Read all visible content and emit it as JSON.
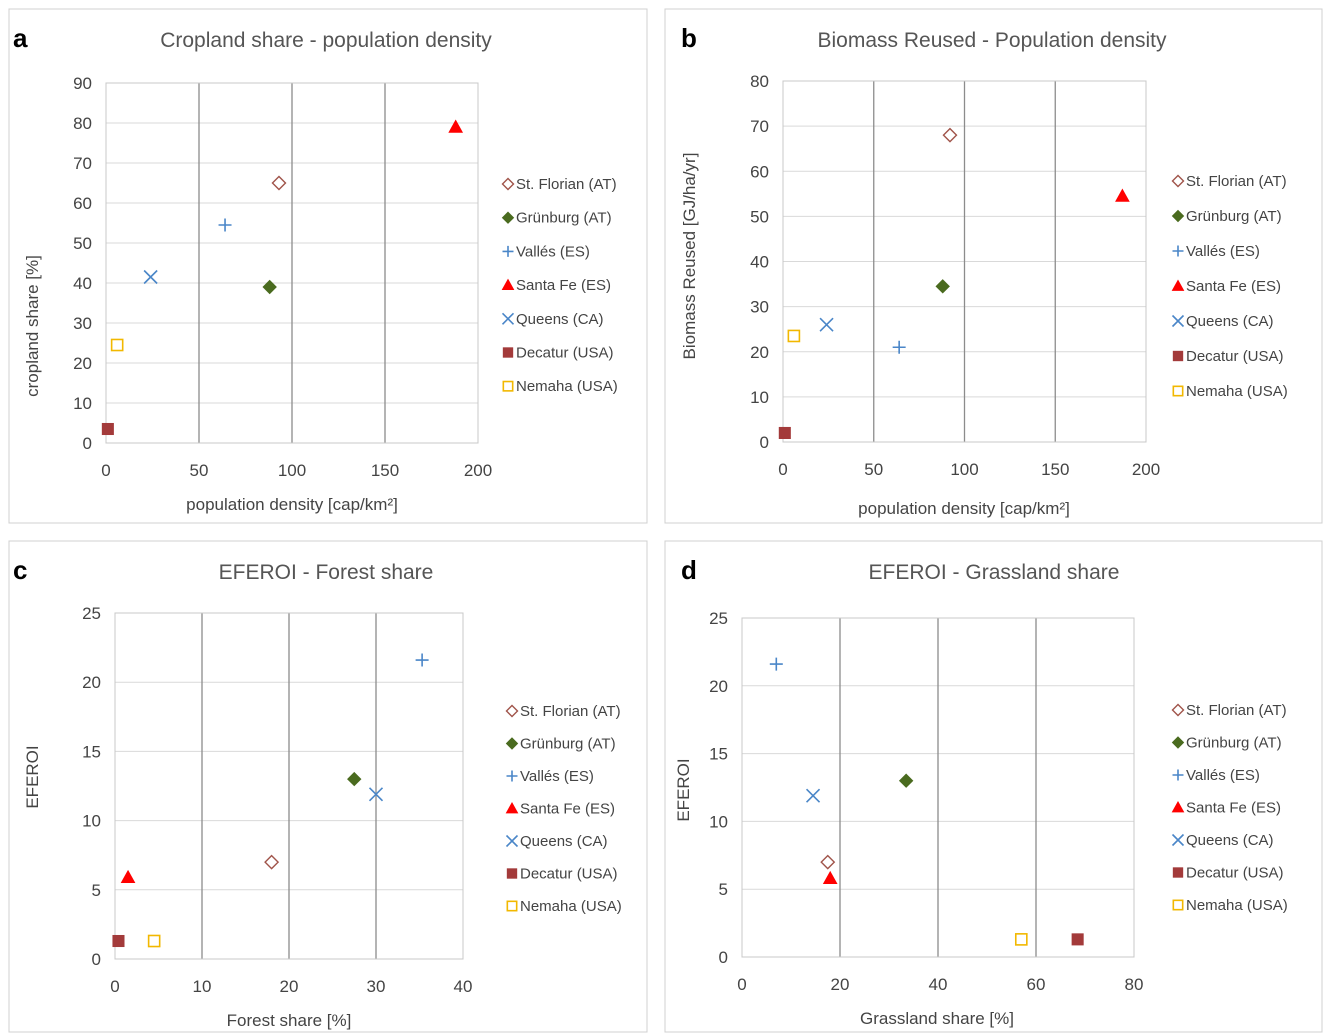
{
  "chart_data": [
    {
      "type": "scatter",
      "panel": "a",
      "title": "Cropland share - population density",
      "xlabel": "population density [cap/km²]",
      "ylabel": "cropland share [%]",
      "xlim": [
        0,
        200
      ],
      "ylim": [
        0,
        90
      ],
      "xticks": [
        0,
        50,
        100,
        150,
        200
      ],
      "yticks": [
        0,
        10,
        20,
        30,
        40,
        50,
        60,
        70,
        80,
        90
      ],
      "grid": true,
      "legend_position": "right",
      "series": [
        {
          "name": "St. Florian (AT)",
          "marker": "diamond-open",
          "color": "#a0544a",
          "x": [
            93
          ],
          "y": [
            65
          ]
        },
        {
          "name": "Grünburg (AT)",
          "marker": "diamond",
          "color": "#4a6b1f",
          "x": [
            88
          ],
          "y": [
            39
          ]
        },
        {
          "name": "Vallés (ES)",
          "marker": "plus",
          "color": "#4a86c8",
          "x": [
            64
          ],
          "y": [
            54.5
          ]
        },
        {
          "name": "Santa Fe (ES)",
          "marker": "triangle",
          "color": "#ff0000",
          "x": [
            188
          ],
          "y": [
            79
          ]
        },
        {
          "name": "Queens (CA)",
          "marker": "x",
          "color": "#4a86c8",
          "x": [
            24
          ],
          "y": [
            41.5
          ]
        },
        {
          "name": "Decatur (USA)",
          "marker": "square",
          "color": "#a33a3a",
          "x": [
            1
          ],
          "y": [
            3.5
          ]
        },
        {
          "name": "Nemaha (USA)",
          "marker": "square-open",
          "color": "#f2b800",
          "x": [
            6
          ],
          "y": [
            24.5
          ]
        }
      ]
    },
    {
      "type": "scatter",
      "panel": "b",
      "title": "Biomass Reused - Population density",
      "xlabel": "population density [cap/km²]",
      "ylabel": "Biomass Reused [GJ/ha/yr]",
      "xlim": [
        0,
        200
      ],
      "ylim": [
        0,
        80
      ],
      "xticks": [
        0,
        50,
        100,
        150,
        200
      ],
      "yticks": [
        0,
        10,
        20,
        30,
        40,
        50,
        60,
        70,
        80
      ],
      "grid": true,
      "legend_position": "right",
      "series": [
        {
          "name": "St. Florian (AT)",
          "marker": "diamond-open",
          "color": "#a0544a",
          "x": [
            92
          ],
          "y": [
            68
          ]
        },
        {
          "name": "Grünburg (AT)",
          "marker": "diamond",
          "color": "#4a6b1f",
          "x": [
            88
          ],
          "y": [
            34.5
          ]
        },
        {
          "name": "Vallés (ES)",
          "marker": "plus",
          "color": "#4a86c8",
          "x": [
            64
          ],
          "y": [
            21
          ]
        },
        {
          "name": "Santa Fe (ES)",
          "marker": "triangle",
          "color": "#ff0000",
          "x": [
            187
          ],
          "y": [
            54.5
          ]
        },
        {
          "name": "Queens (CA)",
          "marker": "x",
          "color": "#4a86c8",
          "x": [
            24
          ],
          "y": [
            26
          ]
        },
        {
          "name": "Decatur (USA)",
          "marker": "square",
          "color": "#a33a3a",
          "x": [
            1
          ],
          "y": [
            2
          ]
        },
        {
          "name": "Nemaha (USA)",
          "marker": "square-open",
          "color": "#f2b800",
          "x": [
            6
          ],
          "y": [
            23.5
          ]
        }
      ]
    },
    {
      "type": "scatter",
      "panel": "c",
      "title": "EFEROI - Forest share",
      "xlabel": "Forest share [%]",
      "ylabel": "EFEROI",
      "xlim": [
        0,
        40
      ],
      "ylim": [
        0,
        25
      ],
      "xticks": [
        0,
        10,
        20,
        30,
        40
      ],
      "yticks": [
        0,
        5,
        10,
        15,
        20,
        25
      ],
      "grid": true,
      "legend_position": "right",
      "series": [
        {
          "name": "St. Florian (AT)",
          "marker": "diamond-open",
          "color": "#a0544a",
          "x": [
            18
          ],
          "y": [
            7
          ]
        },
        {
          "name": "Grünburg (AT)",
          "marker": "diamond",
          "color": "#4a6b1f",
          "x": [
            27.5
          ],
          "y": [
            13
          ]
        },
        {
          "name": "Vallés (ES)",
          "marker": "plus",
          "color": "#4a86c8",
          "x": [
            35.3
          ],
          "y": [
            21.6
          ]
        },
        {
          "name": "Santa Fe (ES)",
          "marker": "triangle",
          "color": "#ff0000",
          "x": [
            1.5
          ],
          "y": [
            5.9
          ]
        },
        {
          "name": "Queens (CA)",
          "marker": "x",
          "color": "#4a86c8",
          "x": [
            30
          ],
          "y": [
            11.9
          ]
        },
        {
          "name": "Decatur (USA)",
          "marker": "square",
          "color": "#a33a3a",
          "x": [
            0.4
          ],
          "y": [
            1.3
          ]
        },
        {
          "name": "Nemaha (USA)",
          "marker": "square-open",
          "color": "#f2b800",
          "x": [
            4.5
          ],
          "y": [
            1.3
          ]
        }
      ]
    },
    {
      "type": "scatter",
      "panel": "d",
      "title": "EFEROI - Grassland share",
      "xlabel": "Grassland share [%]",
      "ylabel": "EFEROI",
      "xlim": [
        0,
        80
      ],
      "ylim": [
        0,
        25
      ],
      "xticks": [
        0,
        20,
        40,
        60,
        80
      ],
      "yticks": [
        0,
        5,
        10,
        15,
        20,
        25
      ],
      "grid": true,
      "legend_position": "right",
      "series": [
        {
          "name": "St. Florian (AT)",
          "marker": "diamond-open",
          "color": "#a0544a",
          "x": [
            17.5
          ],
          "y": [
            7
          ]
        },
        {
          "name": "Grünburg (AT)",
          "marker": "diamond",
          "color": "#4a6b1f",
          "x": [
            33.5
          ],
          "y": [
            13
          ]
        },
        {
          "name": "Vallés (ES)",
          "marker": "plus",
          "color": "#4a86c8",
          "x": [
            7
          ],
          "y": [
            21.6
          ]
        },
        {
          "name": "Santa Fe (ES)",
          "marker": "triangle",
          "color": "#ff0000",
          "x": [
            18
          ],
          "y": [
            5.8
          ]
        },
        {
          "name": "Queens (CA)",
          "marker": "x",
          "color": "#4a86c8",
          "x": [
            14.5
          ],
          "y": [
            11.9
          ]
        },
        {
          "name": "Decatur (USA)",
          "marker": "square",
          "color": "#a33a3a",
          "x": [
            68.5
          ],
          "y": [
            1.3
          ]
        },
        {
          "name": "Nemaha (USA)",
          "marker": "square-open",
          "color": "#f2b800",
          "x": [
            57
          ],
          "y": [
            1.3
          ]
        }
      ]
    }
  ]
}
